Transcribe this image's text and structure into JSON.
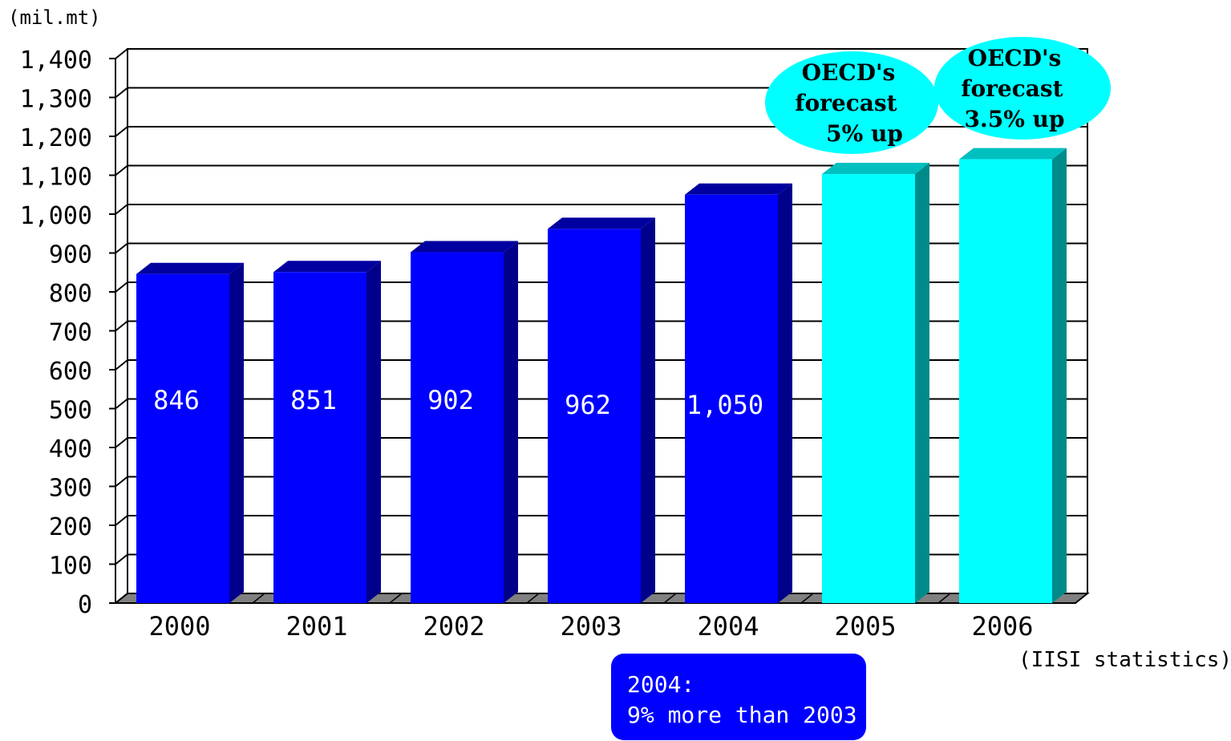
{
  "chart_data": {
    "type": "bar",
    "y_unit": "(mil.mt)",
    "source": "(IISI statistics)",
    "categories": [
      "2000",
      "2001",
      "2002",
      "2003",
      "2004",
      "2005",
      "2006"
    ],
    "values": [
      846,
      851,
      902,
      962,
      1050,
      1103,
      1141
    ],
    "data_labels": [
      "846",
      "851",
      "902",
      "962",
      "1,050",
      "",
      ""
    ],
    "ylim": [
      0,
      1400
    ],
    "yticks": [
      0,
      100,
      200,
      300,
      400,
      500,
      600,
      700,
      800,
      900,
      1000,
      1100,
      1200,
      1300,
      1400
    ],
    "ytick_labels": [
      "0",
      "100",
      "200",
      "300",
      "400",
      "500",
      "600",
      "700",
      "800",
      "900",
      "1,000",
      "1,100",
      "1,200",
      "1,300",
      "1,400"
    ],
    "grid": true,
    "colors": {
      "actual_front": "#0000ff",
      "actual_side": "#00008b",
      "actual_top": "#0000a0",
      "forecast_front": "#00ffff",
      "forecast_side": "#008b8b",
      "forecast_top": "#00bfbf",
      "floor": "#808080"
    },
    "forecast_categories": [
      "2005",
      "2006"
    ],
    "annotations": [
      {
        "category": "2005",
        "lines": [
          "OECD's",
          "forecast",
          "5% up"
        ],
        "color": "#00ffff"
      },
      {
        "category": "2006",
        "lines": [
          "OECD's",
          "forecast",
          "3.5% up"
        ],
        "color": "#00ffff"
      }
    ],
    "note": {
      "lines": [
        "2004:",
        "9% more than 2003"
      ],
      "color": "#0000ff"
    }
  }
}
